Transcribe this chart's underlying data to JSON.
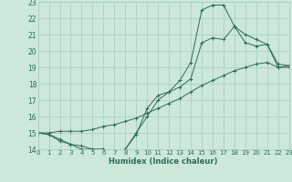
{
  "xlabel": "Humidex (Indice chaleur)",
  "bg_color": "#cbe8d8",
  "grid_color": "#a8ccba",
  "line_color": "#2d6b55",
  "xlim": [
    0,
    23
  ],
  "ylim": [
    14,
    23
  ],
  "xticks": [
    0,
    1,
    2,
    3,
    4,
    5,
    6,
    7,
    8,
    9,
    10,
    11,
    12,
    13,
    14,
    15,
    16,
    17,
    18,
    19,
    20,
    21,
    22,
    23
  ],
  "yticks": [
    14,
    15,
    16,
    17,
    18,
    19,
    20,
    21,
    22,
    23
  ],
  "curve1_x": [
    0,
    1,
    2,
    3,
    4,
    5,
    6,
    7,
    8,
    9,
    10,
    11,
    12,
    13,
    14,
    15,
    16,
    17,
    18,
    19,
    20,
    21,
    22,
    23
  ],
  "curve1_y": [
    15.0,
    14.9,
    14.6,
    14.3,
    14.2,
    14.0,
    14.0,
    13.8,
    14.0,
    15.0,
    16.0,
    17.0,
    17.5,
    18.2,
    19.3,
    22.5,
    22.8,
    22.8,
    21.5,
    20.5,
    20.3,
    20.4,
    19.2,
    19.1
  ],
  "curve2_x": [
    0,
    1,
    2,
    3,
    4,
    5,
    6,
    7,
    8,
    9,
    10,
    11,
    12,
    13,
    14,
    15,
    16,
    17,
    18,
    19,
    20,
    21,
    22,
    23
  ],
  "curve2_y": [
    15.0,
    14.9,
    14.5,
    14.3,
    14.0,
    14.0,
    14.0,
    13.8,
    14.0,
    14.9,
    16.5,
    17.3,
    17.5,
    17.8,
    18.3,
    20.5,
    20.8,
    20.7,
    21.5,
    21.0,
    20.7,
    20.4,
    19.0,
    19.1
  ],
  "curve3_x": [
    0,
    1,
    2,
    3,
    4,
    5,
    6,
    7,
    8,
    9,
    10,
    11,
    12,
    13,
    14,
    15,
    16,
    17,
    18,
    19,
    20,
    21,
    22,
    23
  ],
  "curve3_y": [
    15.0,
    15.0,
    15.1,
    15.1,
    15.1,
    15.2,
    15.4,
    15.5,
    15.7,
    15.9,
    16.2,
    16.5,
    16.8,
    17.1,
    17.5,
    17.9,
    18.2,
    18.5,
    18.8,
    19.0,
    19.2,
    19.3,
    19.0,
    19.0
  ]
}
